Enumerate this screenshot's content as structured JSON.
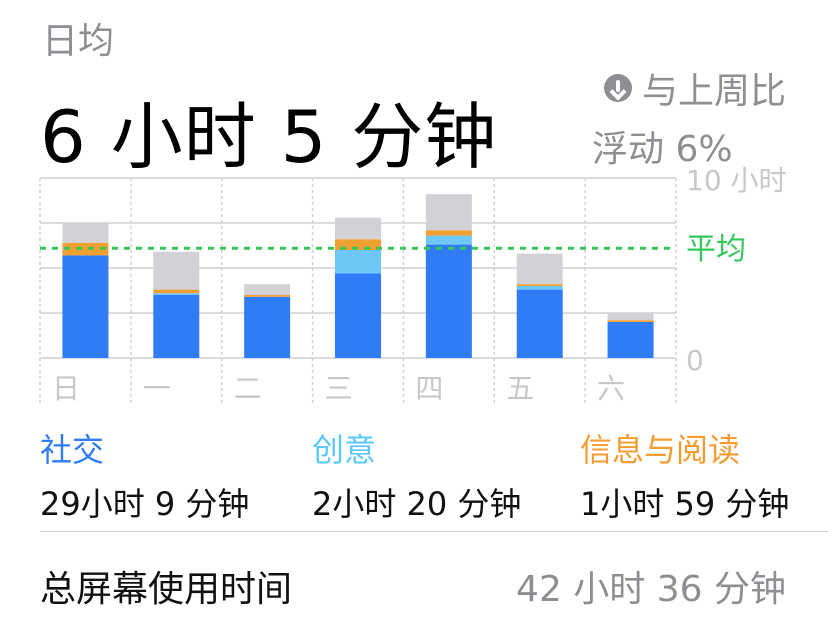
{
  "header": {
    "daily_label": "日均",
    "daily_value": "6 小时 5 分钟",
    "compare_line1": "与上周比",
    "compare_line2": "浮动 6%",
    "compare_icon": "arrow-down-circle-icon"
  },
  "chart_data": {
    "type": "bar",
    "stacked": true,
    "categories": [
      "日",
      "一",
      "二",
      "三",
      "四",
      "五",
      "六"
    ],
    "series": [
      {
        "name": "社交",
        "color": "#2f7cf6",
        "values": [
          5.7,
          3.5,
          3.4,
          4.7,
          6.3,
          3.8,
          2.0
        ]
      },
      {
        "name": "创意",
        "color": "#6fc7f7",
        "values": [
          0.0,
          0.1,
          0.0,
          1.3,
          0.5,
          0.2,
          0.0
        ]
      },
      {
        "name": "信息与阅读",
        "color": "#f3a033",
        "values": [
          0.7,
          0.2,
          0.1,
          0.6,
          0.3,
          0.1,
          0.1
        ]
      },
      {
        "name": "",
        "color": "#d1d1d6",
        "values": [
          1.1,
          2.1,
          0.6,
          1.2,
          2.0,
          1.7,
          0.4
        ]
      }
    ],
    "ylim": [
      0,
      10
    ],
    "ytick_top": "10 小时",
    "ytick_bottom": "0",
    "average": 6.1,
    "average_label": "平均",
    "average_color": "#34c759"
  },
  "categories": [
    {
      "name": "社交",
      "time": "29小时 9 分钟",
      "color": "#2f7cf6"
    },
    {
      "name": "创意",
      "time": "2小时 20 分钟",
      "color": "#5ac8fa"
    },
    {
      "name": "信息与阅读",
      "time": "1小时 59 分钟",
      "color": "#f39c31"
    }
  ],
  "total": {
    "label": "总屏幕使用时间",
    "value": "42 小时 36 分钟"
  }
}
